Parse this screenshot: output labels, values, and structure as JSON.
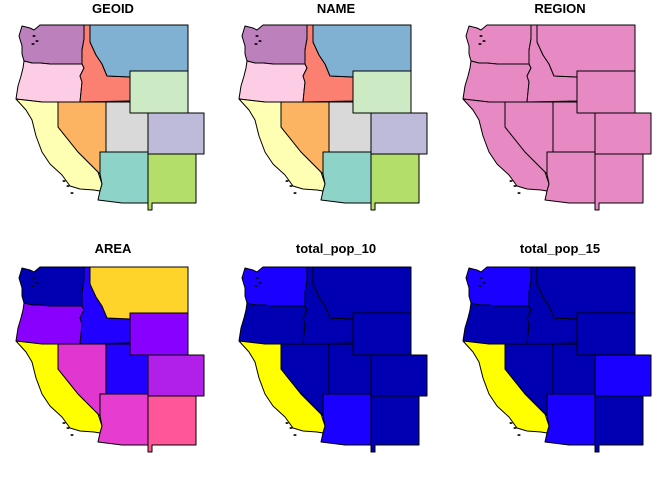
{
  "chart_data": {
    "type": "choropleth",
    "layout": "2x3 facet grid",
    "border_color": "#000000",
    "states": [
      "Washington",
      "Oregon",
      "California",
      "Idaho",
      "Nevada",
      "Montana",
      "Wyoming",
      "Utah",
      "Colorado",
      "Arizona",
      "New Mexico"
    ],
    "panels": [
      {
        "title": "GEOID",
        "fills": {
          "Washington": "#BC80BD",
          "Oregon": "#FCCDE5",
          "California": "#FFFFB3",
          "Idaho": "#FB8072",
          "Nevada": "#FDB462",
          "Montana": "#80B1D3",
          "Wyoming": "#CCEBC5",
          "Utah": "#D9D9D9",
          "Colorado": "#BEBADA",
          "Arizona": "#8DD3C7",
          "New Mexico": "#B3DE69"
        }
      },
      {
        "title": "NAME",
        "fills": {
          "Washington": "#BC80BD",
          "Oregon": "#FCCDE5",
          "California": "#FFFFB3",
          "Idaho": "#FB8072",
          "Nevada": "#FDB462",
          "Montana": "#80B1D3",
          "Wyoming": "#CCEBC5",
          "Utah": "#D9D9D9",
          "Colorado": "#BEBADA",
          "Arizona": "#8DD3C7",
          "New Mexico": "#B3DE69"
        }
      },
      {
        "title": "REGION",
        "fills": {
          "Washington": "#E78AC3",
          "Oregon": "#E78AC3",
          "California": "#E78AC3",
          "Idaho": "#E78AC3",
          "Nevada": "#E78AC3",
          "Montana": "#E78AC3",
          "Wyoming": "#E78AC3",
          "Utah": "#E78AC3",
          "Colorado": "#E78AC3",
          "Arizona": "#E78AC3",
          "New Mexico": "#E78AC3"
        }
      },
      {
        "title": "AREA",
        "fills": {
          "Washington": "#0000B3",
          "Oregon": "#8A00FF",
          "California": "#FFFF00",
          "Idaho": "#2200FF",
          "Nevada": "#E236D0",
          "Montana": "#FFD42A",
          "Wyoming": "#8800FF",
          "Utah": "#2200FF",
          "Colorado": "#B020E8",
          "Arizona": "#E63CD0",
          "New Mexico": "#FF5599"
        }
      },
      {
        "title": "total_pop_10",
        "fills": {
          "Washington": "#1A00FF",
          "Oregon": "#0000B3",
          "California": "#FFFF00",
          "Idaho": "#0000B3",
          "Nevada": "#0000B3",
          "Montana": "#0000B3",
          "Wyoming": "#0000B3",
          "Utah": "#0000B3",
          "Colorado": "#0000B3",
          "Arizona": "#1A00FF",
          "New Mexico": "#0000B3"
        }
      },
      {
        "title": "total_pop_15",
        "fills": {
          "Washington": "#1A00FF",
          "Oregon": "#0000B3",
          "California": "#FFFF00",
          "Idaho": "#0000B3",
          "Nevada": "#0000B3",
          "Montana": "#0000B3",
          "Wyoming": "#0000B3",
          "Utah": "#0000B3",
          "Colorado": "#1A00FF",
          "Arizona": "#1A00FF",
          "New Mexico": "#0000B3"
        }
      }
    ]
  }
}
